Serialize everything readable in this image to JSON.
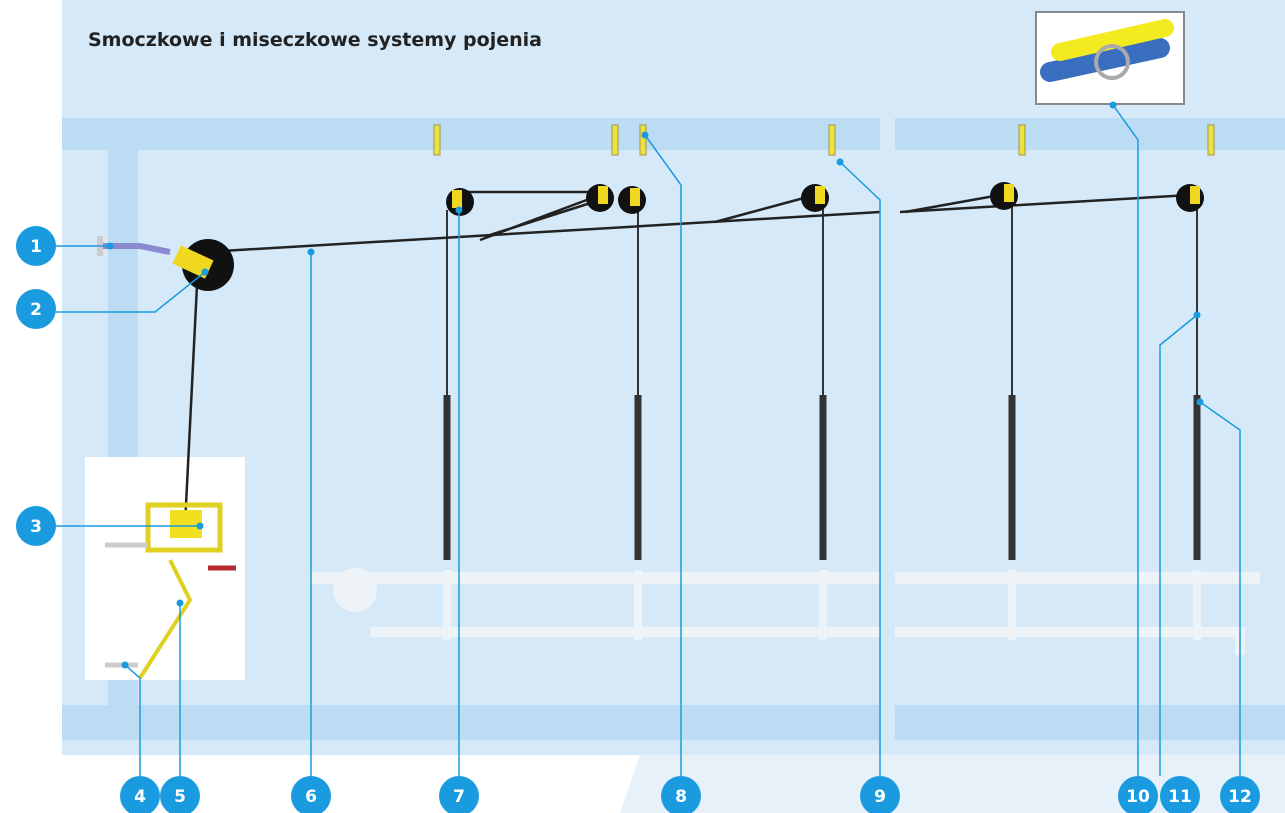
{
  "title": "Smoczkowe i miseczkowe systemy pojenia",
  "callouts": [
    "1",
    "2",
    "3",
    "4",
    "5",
    "6",
    "7",
    "8",
    "9",
    "10",
    "11",
    "12"
  ]
}
